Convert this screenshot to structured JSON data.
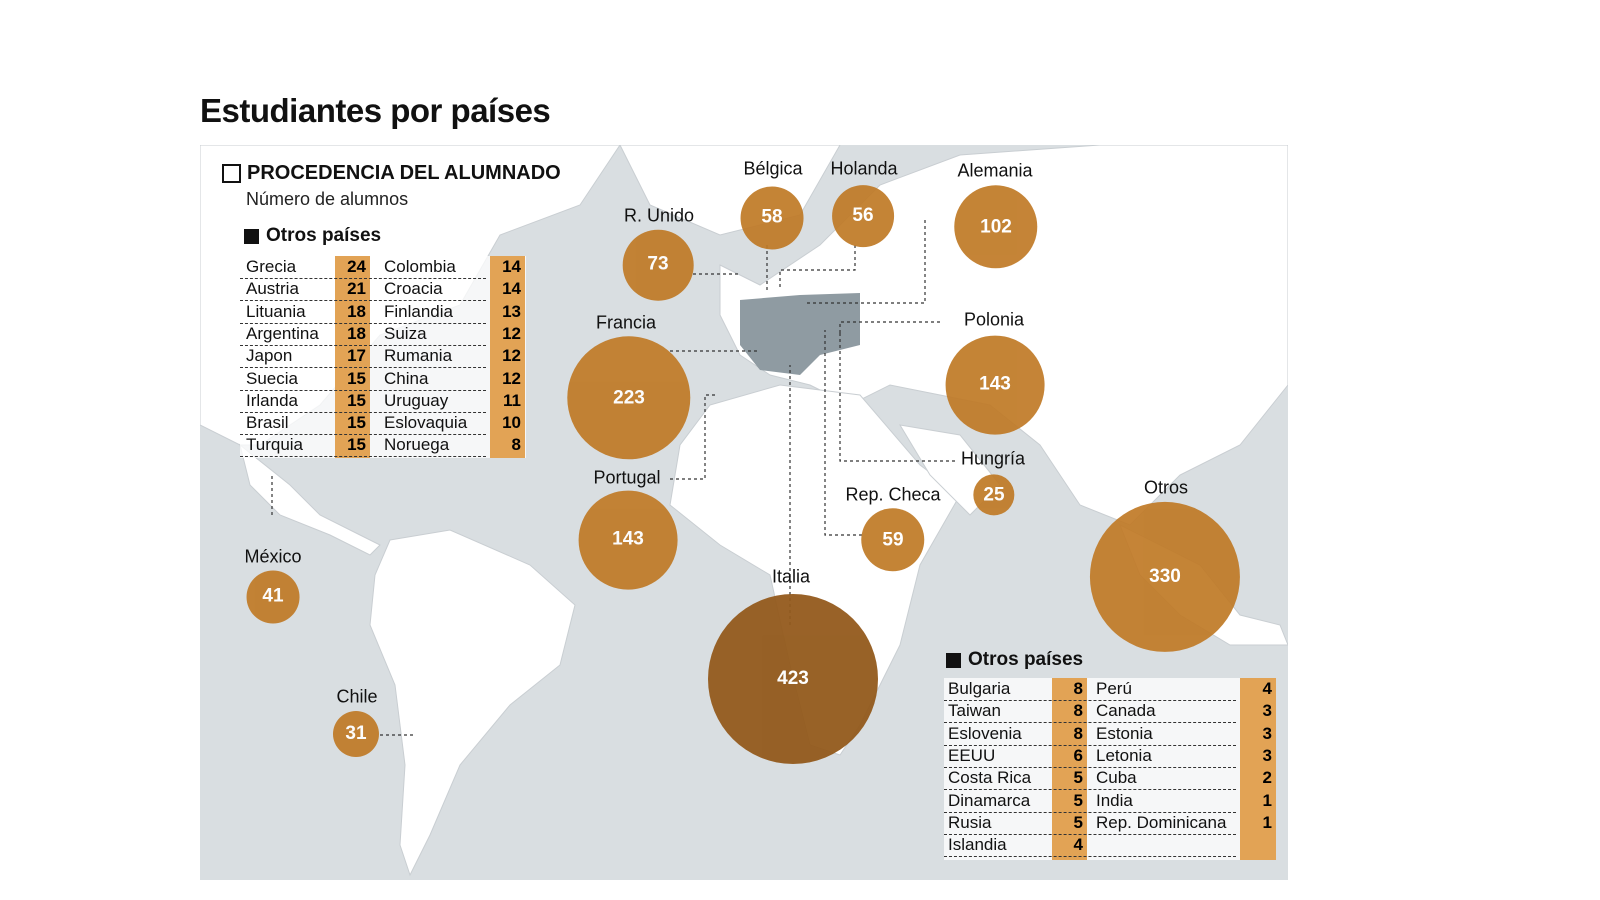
{
  "title": "Estudiantes por países",
  "legend": {
    "header": "PROCEDENCIA DEL ALUMNADO",
    "subtitle": "Número de alumnos"
  },
  "colors": {
    "bubble": "#c07a26",
    "bubble_largest": "#935a1c",
    "table_value": "#e2a355",
    "sea": "#d9dee1",
    "land": "#ffffff",
    "highlight_land": "#8f9ba2"
  },
  "countries": [
    {
      "name": "R. Unido",
      "value": 73
    },
    {
      "name": "Bélgica",
      "value": 58
    },
    {
      "name": "Holanda",
      "value": 56
    },
    {
      "name": "Alemania",
      "value": 102
    },
    {
      "name": "Francia",
      "value": 223
    },
    {
      "name": "Polonia",
      "value": 143
    },
    {
      "name": "Portugal",
      "value": 143
    },
    {
      "name": "Hungría",
      "value": 25
    },
    {
      "name": "Rep. Checa",
      "value": 59
    },
    {
      "name": "Otros",
      "value": 330
    },
    {
      "name": "México",
      "value": 41
    },
    {
      "name": "Chile",
      "value": 31
    },
    {
      "name": "Italia",
      "value": 423
    }
  ],
  "others1": {
    "title": "Otros países",
    "rows": [
      [
        "Grecia",
        "24",
        "Colombia",
        "14"
      ],
      [
        "Austria",
        "21",
        "Croacia",
        "14"
      ],
      [
        "Lituania",
        "18",
        "Finlandia",
        "13"
      ],
      [
        "Argentina",
        "18",
        "Suiza",
        "12"
      ],
      [
        "Japon",
        "17",
        "Rumania",
        "12"
      ],
      [
        "Suecia",
        "15",
        "China",
        "12"
      ],
      [
        "Irlanda",
        "15",
        "Uruguay",
        "11"
      ],
      [
        "Brasil",
        "15",
        "Eslovaquia",
        "10"
      ],
      [
        "Turquia",
        "15",
        "Noruega",
        "8"
      ]
    ]
  },
  "others2": {
    "title": "Otros países",
    "rows": [
      [
        "Bulgaria",
        "8",
        "Perú",
        "4"
      ],
      [
        "Taiwan",
        "8",
        "Canada",
        "3"
      ],
      [
        "Eslovenia",
        "8",
        "Estonia",
        "3"
      ],
      [
        "EEUU",
        "6",
        "Letonia",
        "3"
      ],
      [
        "Costa Rica",
        "5",
        "Cuba",
        "2"
      ],
      [
        "Dinamarca",
        "5",
        "India",
        "1"
      ],
      [
        "Rusia",
        "5",
        "Rep. Dominicana",
        "1"
      ],
      [
        "Islandia",
        "4",
        "",
        ""
      ]
    ]
  }
}
